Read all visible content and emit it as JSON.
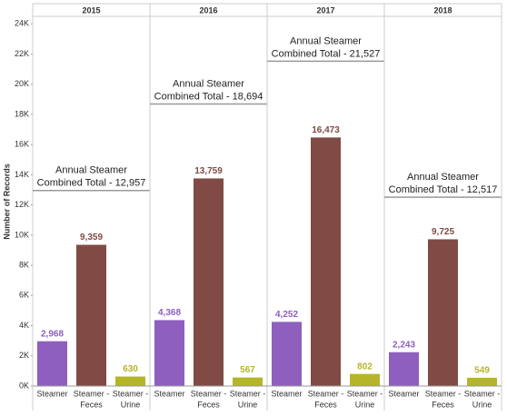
{
  "chart_data": {
    "type": "bar",
    "y_label": "Number of Records",
    "ylim": [
      0,
      24500
    ],
    "yticks": [
      {
        "value": 0,
        "label": "0K"
      },
      {
        "value": 2000,
        "label": "2K"
      },
      {
        "value": 4000,
        "label": "4K"
      },
      {
        "value": 6000,
        "label": "6K"
      },
      {
        "value": 8000,
        "label": "8K"
      },
      {
        "value": 10000,
        "label": "10K"
      },
      {
        "value": 12000,
        "label": "12K"
      },
      {
        "value": 14000,
        "label": "14K"
      },
      {
        "value": 16000,
        "label": "16K"
      },
      {
        "value": 18000,
        "label": "18K"
      },
      {
        "value": 20000,
        "label": "20K"
      },
      {
        "value": 22000,
        "label": "22K"
      },
      {
        "value": 24000,
        "label": "24K"
      }
    ],
    "categories": [
      [
        "Steamer"
      ],
      [
        "Steamer -",
        "Feces"
      ],
      [
        "Steamer -",
        "Urine"
      ]
    ],
    "colors": [
      "#8e5fbf",
      "#7f4b44",
      "#b5b52a"
    ],
    "facets": [
      {
        "title": "2015",
        "values": [
          2968,
          9359,
          630
        ],
        "value_labels": [
          "2,968",
          "9,359",
          "630"
        ],
        "total": 12957,
        "annotation": [
          "Annual Steamer",
          "Combined Total - 12,957"
        ]
      },
      {
        "title": "2016",
        "values": [
          4368,
          13759,
          567
        ],
        "value_labels": [
          "4,368",
          "13,759",
          "567"
        ],
        "total": 18694,
        "annotation": [
          "Annual Steamer",
          "Combined Total - 18,694"
        ]
      },
      {
        "title": "2017",
        "values": [
          4252,
          16473,
          802
        ],
        "value_labels": [
          "4,252",
          "16,473",
          "802"
        ],
        "total": 21527,
        "annotation": [
          "Annual Steamer",
          "Combined Total - 21,527"
        ]
      },
      {
        "title": "2018",
        "values": [
          2243,
          9725,
          549
        ],
        "value_labels": [
          "2,243",
          "9,725",
          "549"
        ],
        "total": 12517,
        "annotation": [
          "Annual Steamer",
          "Combined Total - 12,517"
        ]
      }
    ]
  }
}
